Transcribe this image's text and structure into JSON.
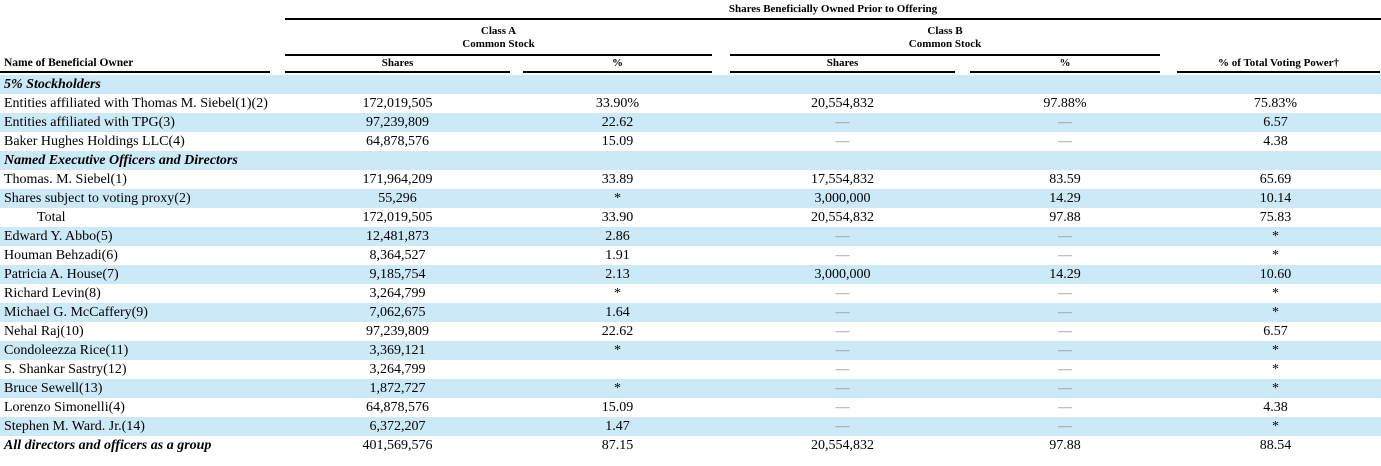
{
  "table": {
    "spanner_title": "Shares Beneficially Owned Prior to Offering",
    "header": {
      "name_column": "Name of Beneficial Owner",
      "group_a": {
        "line1": "Class A",
        "line2": "Common Stock"
      },
      "group_b": {
        "line1": "Class B",
        "line2": "Common Stock"
      },
      "columns": [
        "Shares",
        "%",
        "Shares",
        "%",
        "% of Total Voting Power†"
      ]
    },
    "rows": [
      {
        "name": "5% Stockholders",
        "type": "section",
        "cells": [
          "",
          "",
          "",
          "",
          ""
        ]
      },
      {
        "name": "Entities affiliated with Thomas M. Siebel(1)(2)",
        "type": "data",
        "cells": [
          "172,019,505",
          "33.90%",
          "20,554,832",
          "97.88%",
          "75.83%"
        ]
      },
      {
        "name": "Entities affiliated with TPG(3)",
        "type": "data",
        "cells": [
          "97,239,809",
          "22.62",
          "—",
          "—",
          "6.57"
        ]
      },
      {
        "name": "Baker Hughes Holdings LLC(4)",
        "type": "data",
        "cells": [
          "64,878,576",
          "15.09",
          "—",
          "—",
          "4.38"
        ]
      },
      {
        "name": "Named Executive Officers and Directors",
        "type": "section",
        "cells": [
          "",
          "",
          "",
          "",
          ""
        ]
      },
      {
        "name": "Thomas. M. Siebel(1)",
        "type": "data",
        "cells": [
          "171,964,209",
          "33.89",
          "17,554,832",
          "83.59",
          "65.69"
        ]
      },
      {
        "name": "Shares subject to voting proxy(2)",
        "type": "data",
        "cells": [
          "55,296",
          "*",
          "3,000,000",
          "14.29",
          "10.14"
        ]
      },
      {
        "name": "Total",
        "type": "indent",
        "cells": [
          "172,019,505",
          "33.90",
          "20,554,832",
          "97.88",
          "75.83"
        ]
      },
      {
        "name": "Edward Y. Abbo(5)",
        "type": "data",
        "cells": [
          "12,481,873",
          "2.86",
          "—",
          "—",
          "*"
        ]
      },
      {
        "name": "Houman Behzadi(6)",
        "type": "data",
        "cells": [
          "8,364,527",
          "1.91",
          "—",
          "—",
          "*"
        ]
      },
      {
        "name": "Patricia A. House(7)",
        "type": "data",
        "cells": [
          "9,185,754",
          "2.13",
          "3,000,000",
          "14.29",
          "10.60"
        ]
      },
      {
        "name": "Richard Levin(8)",
        "type": "data",
        "cells": [
          "3,264,799",
          "*",
          "—",
          "—",
          "*"
        ]
      },
      {
        "name": "Michael G. McCaffery(9)",
        "type": "data",
        "cells": [
          "7,062,675",
          "1.64",
          "—",
          "—",
          "*"
        ]
      },
      {
        "name": "Nehal Raj(10)",
        "type": "data",
        "cells": [
          "97,239,809",
          "22.62",
          "—",
          "—",
          "6.57"
        ]
      },
      {
        "name": "Condoleezza Rice(11)",
        "type": "data",
        "cells": [
          "3,369,121",
          "*",
          "—",
          "—",
          "*"
        ]
      },
      {
        "name": "S. Shankar Sastry(12)",
        "type": "data",
        "cells": [
          "3,264,799",
          "",
          "—",
          "—",
          "*"
        ]
      },
      {
        "name": "Bruce Sewell(13)",
        "type": "data",
        "cells": [
          "1,872,727",
          "*",
          "—",
          "—",
          "*"
        ]
      },
      {
        "name": "Lorenzo Simonelli(4)",
        "type": "data",
        "cells": [
          "64,878,576",
          "15.09",
          "—",
          "—",
          "4.38"
        ]
      },
      {
        "name": "Stephen M. Ward. Jr.(14)",
        "type": "data",
        "cells": [
          "6,372,207",
          "1.47",
          "—",
          "—",
          "*"
        ]
      },
      {
        "name": "All directors and officers as a group",
        "type": "group_total",
        "cells": [
          "401,569,576",
          "87.15",
          "20,554,832",
          "97.88",
          "88.54"
        ]
      }
    ]
  },
  "colors": {
    "row_highlight": "#cce9f8",
    "dash_gray": "#8a8a8a",
    "text": "#000000",
    "rule": "#000000"
  }
}
